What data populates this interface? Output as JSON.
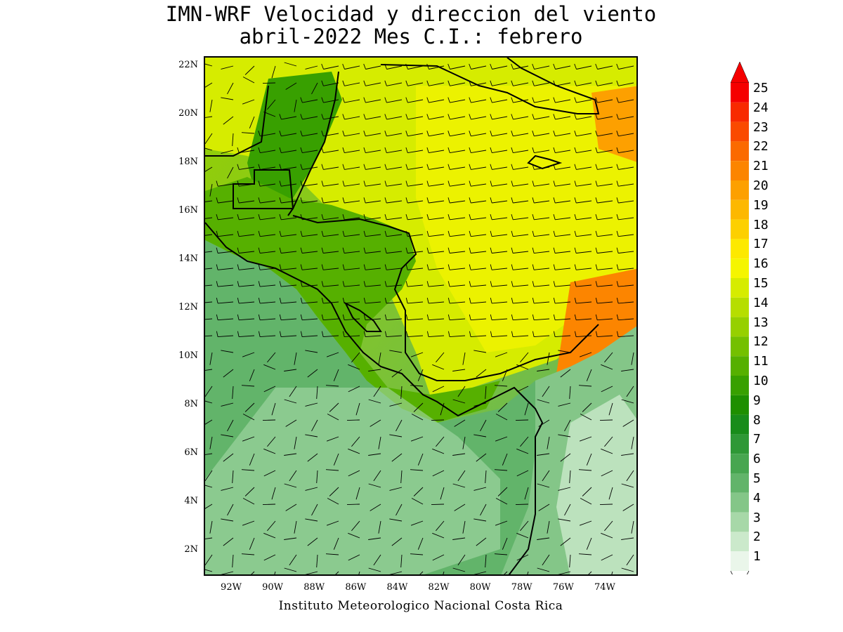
{
  "title": {
    "line1": "IMN-WRF Velocidad y direccion del viento",
    "line2": "abril-2022 Mes C.I.: febrero"
  },
  "credit": "Instituto Meteorologico Nacional Costa Rica",
  "map": {
    "lat_labels": [
      "22N",
      "20N",
      "18N",
      "16N",
      "14N",
      "12N",
      "10N",
      "8N",
      "6N",
      "4N",
      "2N"
    ],
    "lon_labels": [
      "92W",
      "90W",
      "88W",
      "86W",
      "84W",
      "82W",
      "80W",
      "78W",
      "76W",
      "74W"
    ],
    "lat_range": [
      1,
      22.5
    ],
    "lon_range": [
      -93.5,
      -72.5
    ],
    "field": "wind speed shaded (colorbar units), wind barbs for direction"
  },
  "colorbar": {
    "labels": [
      "25",
      "24",
      "23",
      "22",
      "21",
      "20",
      "19",
      "18",
      "17",
      "16",
      "15",
      "14",
      "13",
      "12",
      "11",
      "10",
      "9",
      "8",
      "7",
      "6",
      "5",
      "4",
      "3",
      "2",
      "1"
    ],
    "colors": [
      "#f50000",
      "#f82a00",
      "#fa4a00",
      "#fb6a00",
      "#fc8500",
      "#fda000",
      "#fdb800",
      "#fdd000",
      "#fde900",
      "#f5f500",
      "#d6ec00",
      "#b6de00",
      "#96d000",
      "#74c000",
      "#56b000",
      "#38a000",
      "#1e8f00",
      "#188c1a",
      "#2e9836",
      "#47a650",
      "#62b46a",
      "#84c688",
      "#a7d8a8",
      "#cbe9cb",
      "#eaf6ea"
    ],
    "top_arrow_color": "#f50000"
  }
}
